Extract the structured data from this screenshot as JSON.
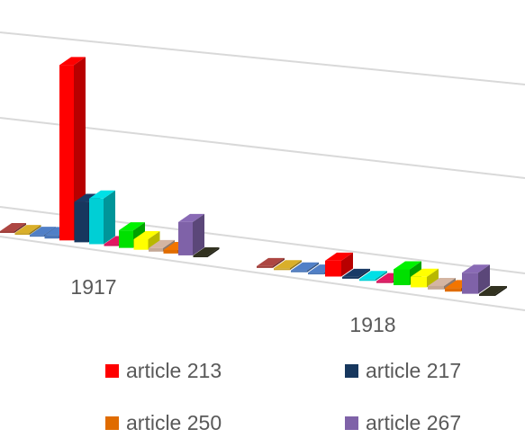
{
  "chart_data": {
    "type": "bar",
    "style": "3d-clustered-column",
    "grid": true,
    "legend_position": "bottom",
    "categories": [
      "1917",
      "1918"
    ],
    "series": [
      {
        "color": "#a0413d",
        "values": [
          0.1,
          0.1
        ]
      },
      {
        "color": "#c9a227",
        "values": [
          0.1,
          0.1
        ]
      },
      {
        "color": "#4a76b8",
        "values": [
          0.1,
          0.1
        ]
      },
      {
        "color": "#4a76b8",
        "values": [
          0.2,
          0.1
        ]
      },
      {
        "name": "article 213",
        "color": "#ff0000",
        "values": [
          10.0,
          0.9
        ]
      },
      {
        "name": "article 217",
        "color": "#17375e",
        "values": [
          2.3,
          0.1
        ]
      },
      {
        "color": "#00cfd5",
        "values": [
          2.6,
          0.1
        ]
      },
      {
        "color": "#d0145a",
        "values": [
          0.1,
          0.1
        ]
      },
      {
        "color": "#00e000",
        "values": [
          1.0,
          0.9
        ]
      },
      {
        "color": "#ffff00",
        "values": [
          0.6,
          0.6
        ]
      },
      {
        "color": "#c4a896",
        "values": [
          0.2,
          0.2
        ]
      },
      {
        "name": "article 250",
        "color": "#e06c00",
        "values": [
          0.2,
          0.2
        ]
      },
      {
        "name": "article 267",
        "color": "#7f62a8",
        "values": [
          1.9,
          1.2
        ]
      },
      {
        "color": "#2e2e1e",
        "values": [
          0.1,
          0.1
        ]
      }
    ]
  }
}
